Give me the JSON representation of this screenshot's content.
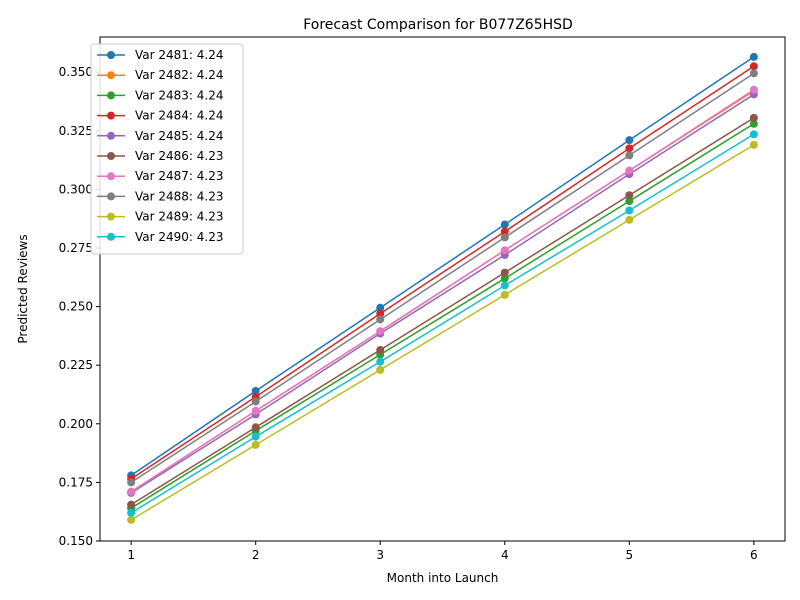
{
  "chart_data": {
    "type": "line",
    "title": "Forecast Comparison for B077Z65HSD",
    "xlabel": "Month into Launch",
    "ylabel": "Predicted Reviews",
    "x": [
      1,
      2,
      3,
      4,
      5,
      6
    ],
    "xlim": [
      0.75,
      6.25
    ],
    "ylim": [
      0.15,
      0.365
    ],
    "x_ticks": [
      "1",
      "2",
      "3",
      "4",
      "5",
      "6"
    ],
    "y_ticks": [
      0.15,
      0.175,
      0.2,
      0.225,
      0.25,
      0.275,
      0.3,
      0.325,
      0.35
    ],
    "y_tick_labels": [
      "0.150",
      "0.175",
      "0.200",
      "0.225",
      "0.250",
      "0.275",
      "0.300",
      "0.325",
      "0.350"
    ],
    "grid": false,
    "legend_position": "upper-left",
    "series": [
      {
        "name": "Var 2481: 4.24",
        "color": "#1f77b4",
        "values": [
          0.178,
          0.214,
          0.2495,
          0.285,
          0.321,
          0.3565
        ]
      },
      {
        "name": "Var 2482: 4.24",
        "color": "#ff7f0e",
        "values": [
          0.171,
          0.2055,
          0.2395,
          0.274,
          0.308,
          0.342
        ]
      },
      {
        "name": "Var 2483: 4.24",
        "color": "#2ca02c",
        "values": [
          0.164,
          0.197,
          0.2295,
          0.262,
          0.295,
          0.328
        ]
      },
      {
        "name": "Var 2484: 4.24",
        "color": "#d62728",
        "values": [
          0.1765,
          0.2115,
          0.247,
          0.282,
          0.3175,
          0.3525
        ]
      },
      {
        "name": "Var 2485: 4.24",
        "color": "#9467bd",
        "values": [
          0.1705,
          0.204,
          0.2385,
          0.272,
          0.3065,
          0.3405
        ]
      },
      {
        "name": "Var 2486: 4.23",
        "color": "#8c564b",
        "values": [
          0.1655,
          0.1985,
          0.2315,
          0.2645,
          0.2975,
          0.3305
        ]
      },
      {
        "name": "Var 2487: 4.23",
        "color": "#e377c2",
        "values": [
          0.171,
          0.2055,
          0.2395,
          0.274,
          0.308,
          0.3425
        ]
      },
      {
        "name": "Var 2488: 4.23",
        "color": "#7f7f7f",
        "values": [
          0.175,
          0.2095,
          0.2445,
          0.2795,
          0.3145,
          0.3495
        ]
      },
      {
        "name": "Var 2489: 4.23",
        "color": "#bcbd22",
        "values": [
          0.159,
          0.191,
          0.223,
          0.255,
          0.287,
          0.319
        ]
      },
      {
        "name": "Var 2490: 4.23",
        "color": "#17becf",
        "values": [
          0.162,
          0.1945,
          0.2265,
          0.259,
          0.291,
          0.3235
        ]
      }
    ]
  }
}
